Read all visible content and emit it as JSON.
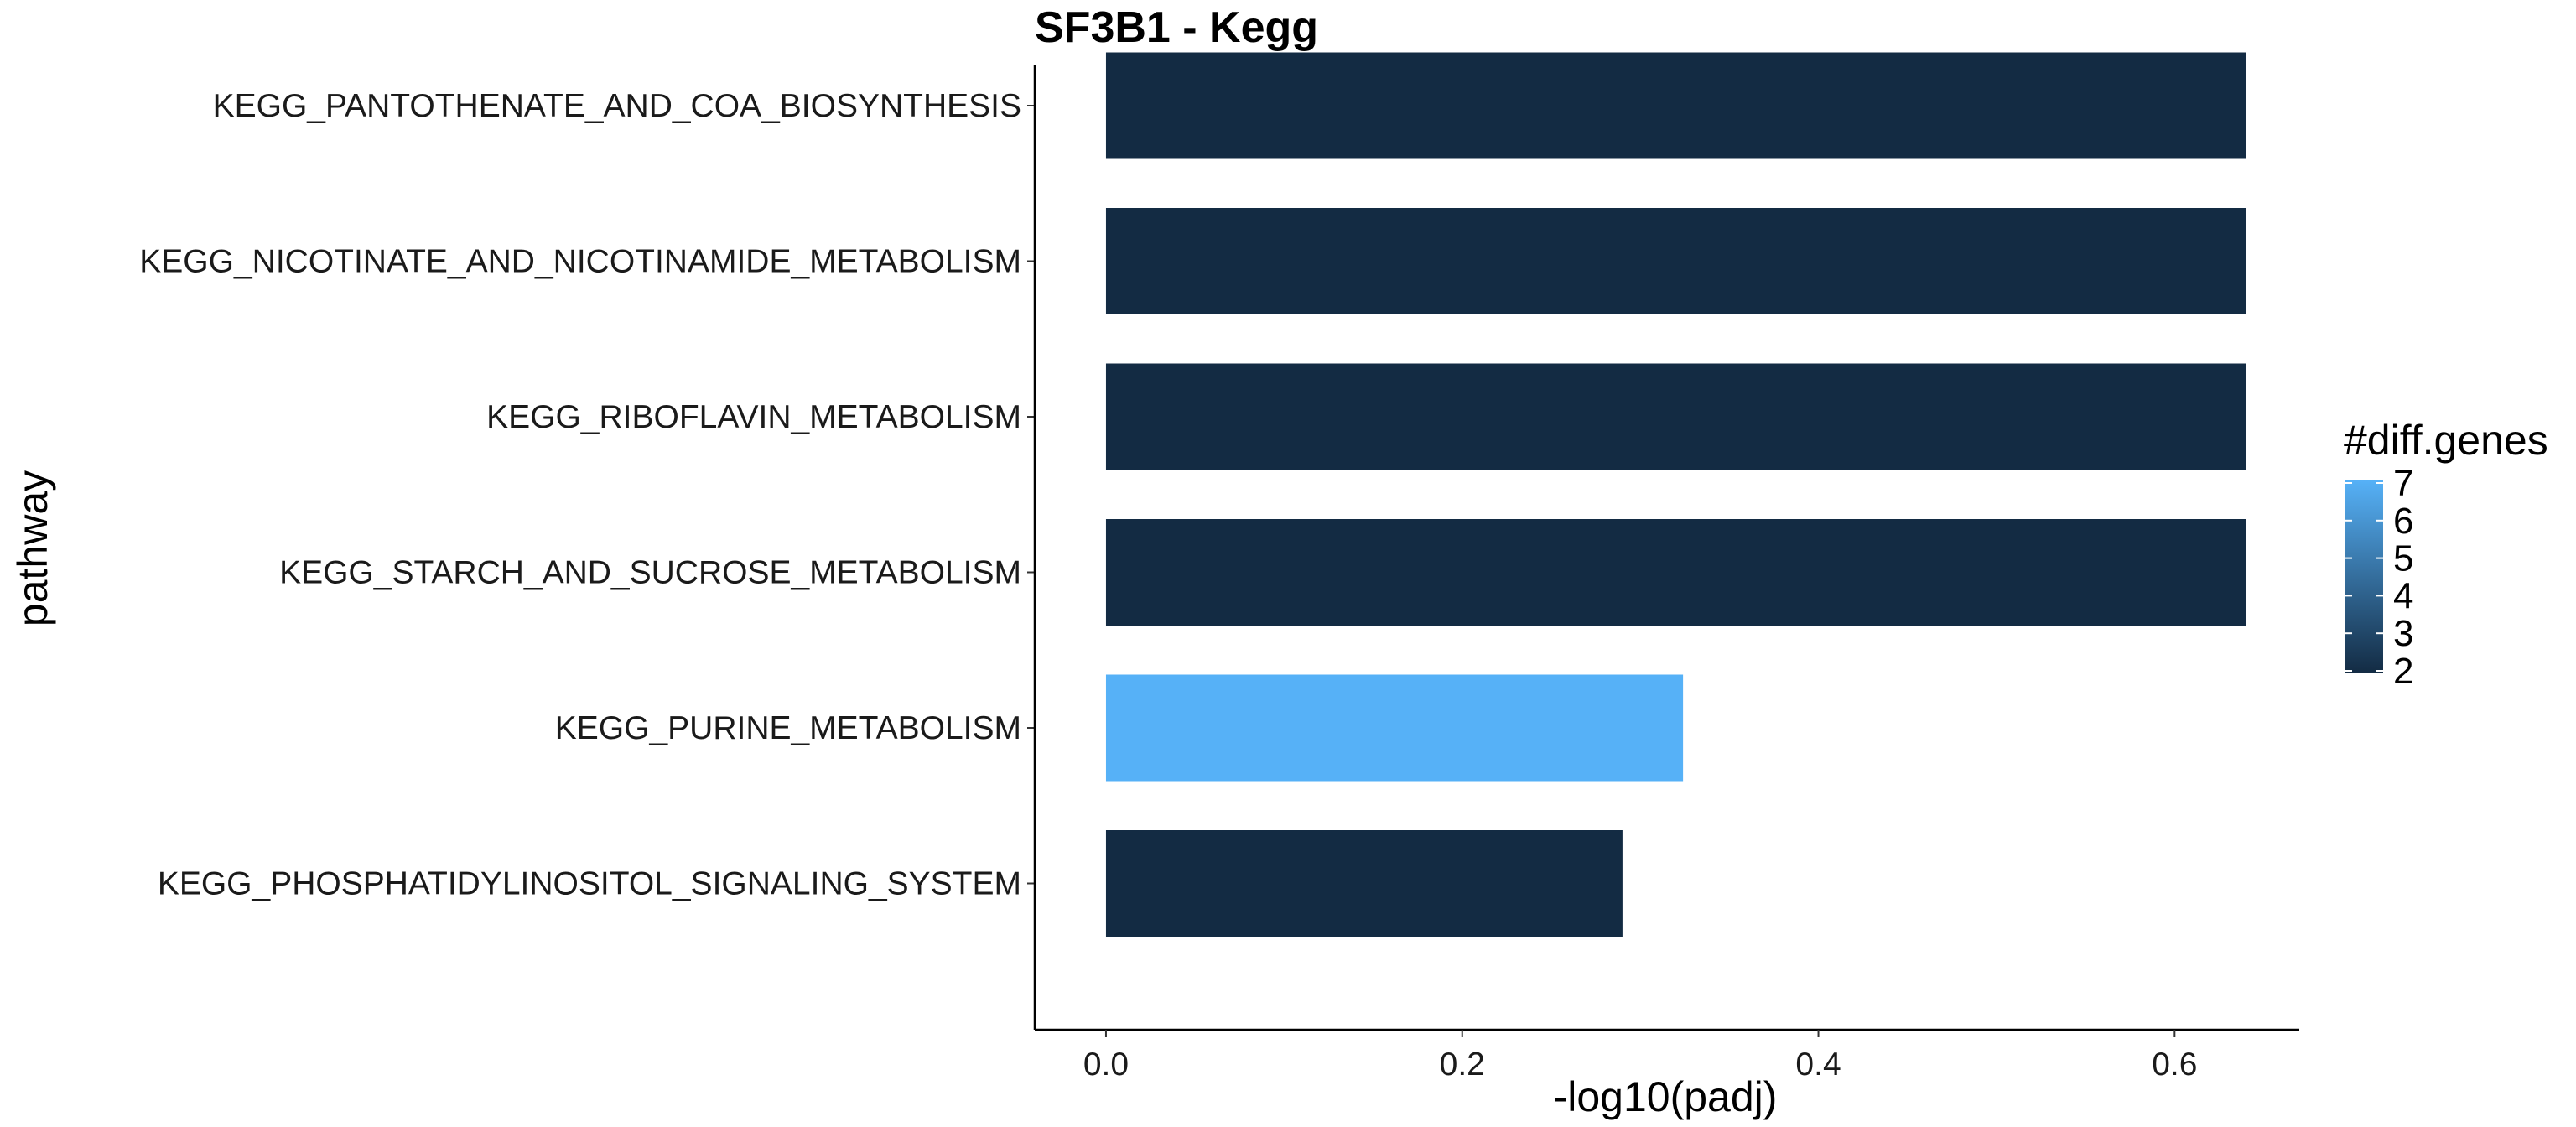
{
  "chart_data": {
    "type": "bar",
    "orientation": "horizontal",
    "title": "SF3B1 - Kegg",
    "xlabel": "-log10(padj)",
    "ylabel": "pathway",
    "xlim": [
      -0.04,
      0.67
    ],
    "x_ticks": [
      "0.0",
      "0.2",
      "0.4",
      "0.6"
    ],
    "x_tick_values": [
      0.0,
      0.2,
      0.4,
      0.6
    ],
    "grid": false,
    "categories": [
      "KEGG_PANTOTHENATE_AND_COA_BIOSYNTHESIS",
      "KEGG_NICOTINATE_AND_NICOTINAMIDE_METABOLISM",
      "KEGG_RIBOFLAVIN_METABOLISM",
      "KEGG_STARCH_AND_SUCROSE_METABOLISM",
      "KEGG_PURINE_METABOLISM",
      "KEGG_PHOSPHATIDYLINOSITOL_SIGNALING_SYSTEM"
    ],
    "values": [
      0.64,
      0.64,
      0.64,
      0.64,
      0.324,
      0.29
    ],
    "fill_values": [
      2,
      2,
      2,
      2,
      7,
      2
    ],
    "legend": {
      "title": "#diff.genes",
      "placement": "right",
      "type": "colorbar",
      "labels": [
        "7",
        "6",
        "5",
        "4",
        "3",
        "2"
      ],
      "label_values": [
        7,
        6,
        5,
        4,
        3,
        2
      ],
      "range": [
        2,
        7
      ],
      "low_color": "#132B43",
      "high_color": "#56B1F7"
    }
  }
}
